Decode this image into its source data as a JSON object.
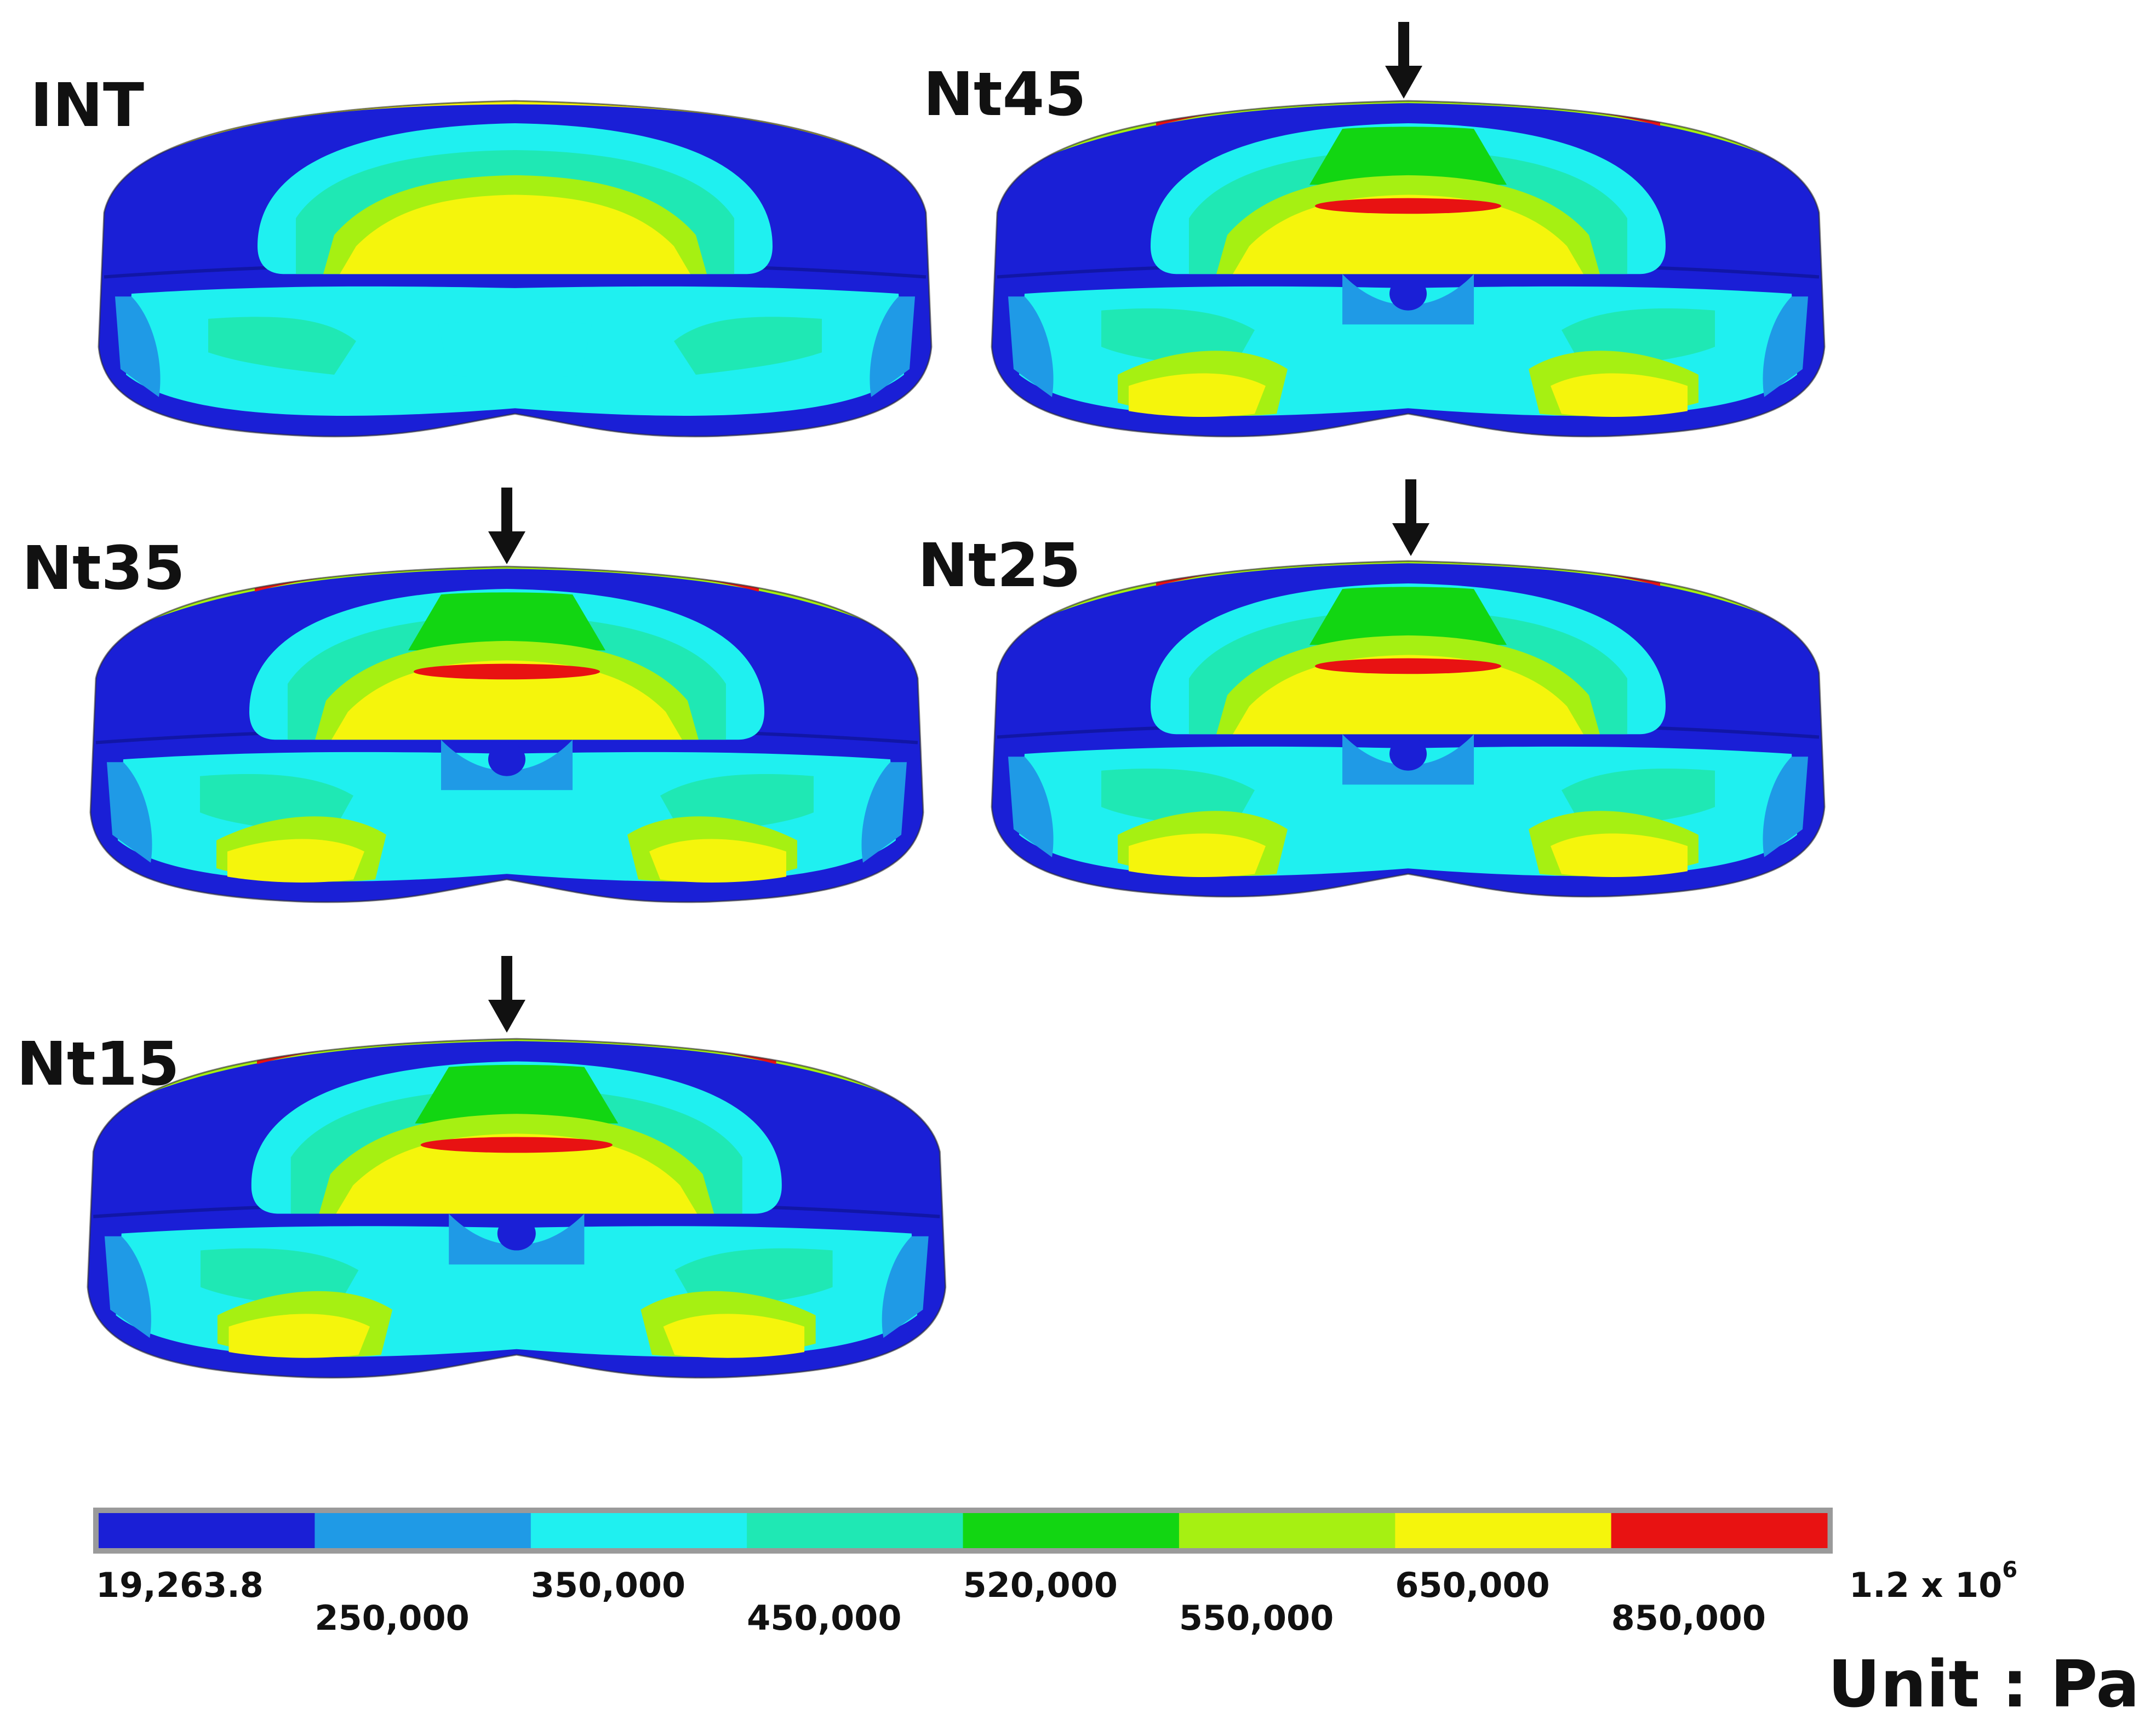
{
  "models": [
    {
      "id": "INT",
      "label": "INT",
      "arrow": false,
      "variant": "plain"
    },
    {
      "id": "Nt45",
      "label": "Nt45",
      "arrow": true,
      "variant": "loaded"
    },
    {
      "id": "Nt35",
      "label": "Nt35",
      "arrow": true,
      "variant": "loaded"
    },
    {
      "id": "Nt25",
      "label": "Nt25",
      "arrow": true,
      "variant": "loaded"
    },
    {
      "id": "Nt15",
      "label": "Nt15",
      "arrow": true,
      "variant": "loaded"
    }
  ],
  "palette": {
    "band1": "#1a1fd6",
    "band2": "#1f9ae6",
    "band3": "#1ff0f0",
    "band4": "#1fe8b4",
    "band5": "#12d612",
    "band6": "#a6f012",
    "band7": "#f5f50c",
    "band8": "#e81212"
  },
  "colorbar": {
    "ticks": [
      "19,263.8",
      "250,000",
      "350,000",
      "450,000",
      "520,000",
      "550,000",
      "650,000",
      "850,000"
    ],
    "max_label_base": "1.2 x 10",
    "max_label_exp": "6",
    "unit": "Unit : Pa"
  }
}
